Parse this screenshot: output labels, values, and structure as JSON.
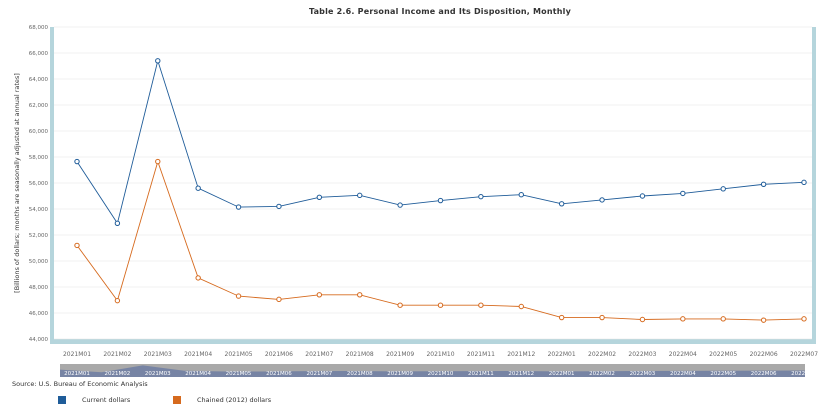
{
  "chart_data": {
    "type": "line",
    "title": "Table 2.6. Personal Income and Its Disposition, Monthly",
    "ylabel": "[Billions of dollars; months are seasonally adjusted at annual rates]",
    "xlabel": "",
    "ylim": [
      44000,
      68000
    ],
    "yticks": [
      "44,000",
      "46,000",
      "48,000",
      "50,000",
      "52,000",
      "54,000",
      "56,000",
      "58,000",
      "60,000",
      "62,000",
      "64,000",
      "66,000",
      "68,000"
    ],
    "ytick_values": [
      44000,
      46000,
      48000,
      50000,
      52000,
      54000,
      56000,
      58000,
      60000,
      62000,
      64000,
      66000,
      68000
    ],
    "categories": [
      "2021M01",
      "2021M02",
      "2021M03",
      "2021M04",
      "2021M05",
      "2021M06",
      "2021M07",
      "2021M08",
      "2021M09",
      "2021M10",
      "2021M11",
      "2021M12",
      "2022M01",
      "2022M02",
      "2022M03",
      "2022M04",
      "2022M05",
      "2022M06",
      "2022M07"
    ],
    "series": [
      {
        "name": "Current dollars",
        "color": "#1f5c99",
        "values": [
          57650,
          52900,
          65400,
          55600,
          54150,
          54200,
          54900,
          55050,
          54300,
          54650,
          54950,
          55100,
          54400,
          54700,
          55000,
          55200,
          55550,
          55900,
          56050
        ]
      },
      {
        "name": "Chained (2012) dollars",
        "color": "#d66a1e",
        "values": [
          51200,
          46950,
          57650,
          48700,
          47300,
          47050,
          47400,
          47400,
          46600,
          46600,
          46600,
          46500,
          45650,
          45650,
          45500,
          45550,
          45550,
          45450,
          45550
        ]
      }
    ]
  },
  "source": "Source: U.S. Bureau of Economic Analysis",
  "colors": {
    "axis_band": "#b5d5dc",
    "navigator_bg": "#a9a9a9",
    "navigator_selection": "#6f7ea3",
    "grid": "#e6e6e6"
  }
}
